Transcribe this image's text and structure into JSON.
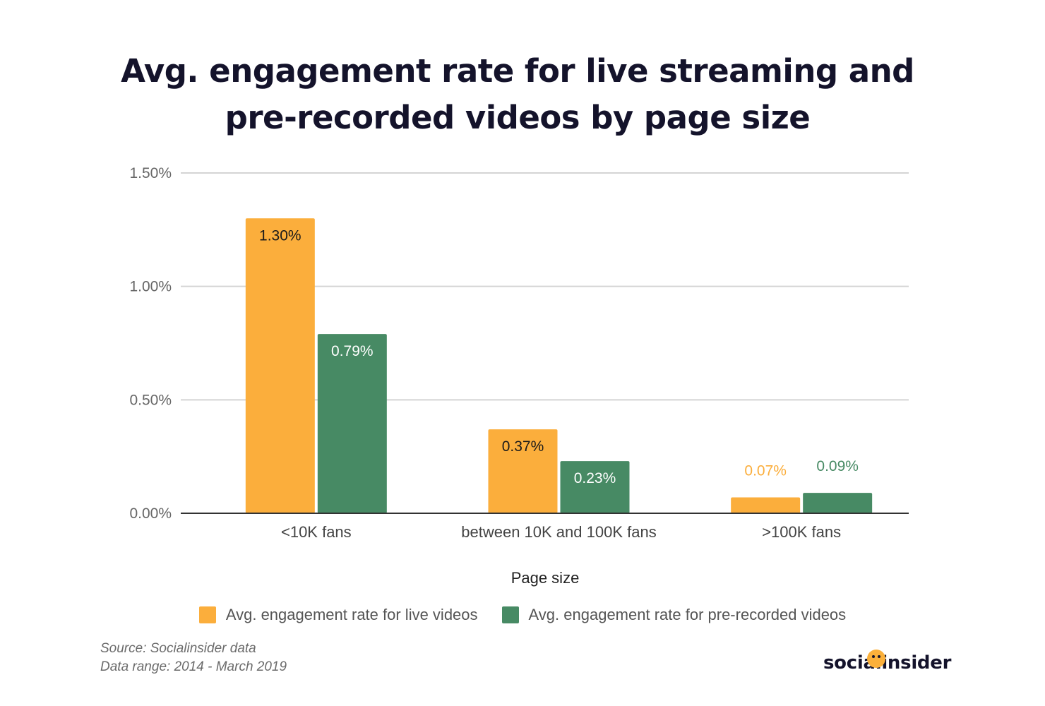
{
  "title_lines": [
    "Avg. engagement rate for live streaming and",
    "pre-recorded videos by page size"
  ],
  "source_lines": [
    "Source: Socialinsider data",
    "Data range: 2014 - March 2019"
  ],
  "logo_text": "socialinsider",
  "colors": {
    "live": "#fbae3c",
    "prerecorded": "#478a64",
    "grid": "#d4d4d4",
    "axis": "#333333"
  },
  "chart_data": {
    "type": "bar",
    "categories": [
      "<10K fans",
      "between 10K and 100K fans",
      ">100K fans"
    ],
    "series": [
      {
        "name": "Avg. engagement rate for live videos",
        "values": [
          1.3,
          0.37,
          0.07
        ],
        "labels": [
          "1.30%",
          "0.37%",
          "0.07%"
        ]
      },
      {
        "name": "Avg. engagement rate for pre-recorded videos",
        "values": [
          0.79,
          0.23,
          0.09
        ],
        "labels": [
          "0.79%",
          "0.23%",
          "0.09%"
        ]
      }
    ],
    "xlabel": "Page size",
    "ylabel": "",
    "ylim": [
      0,
      1.5
    ],
    "yticks": [
      0,
      0.5,
      1.0,
      1.5
    ],
    "ytick_labels": [
      "0.00%",
      "0.50%",
      "1.00%",
      "1.50%"
    ],
    "grid": true,
    "legend_position": "bottom"
  }
}
